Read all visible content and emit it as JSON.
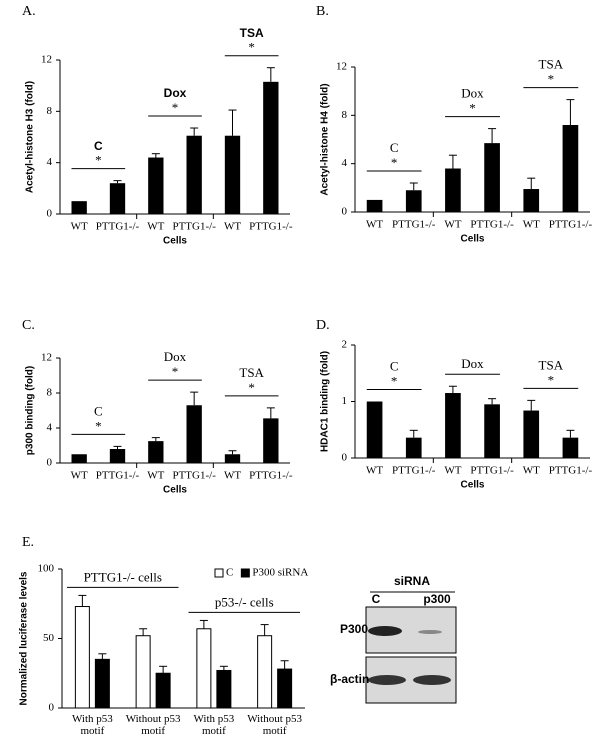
{
  "chart_data": [
    {
      "type": "bar",
      "panel": "A.",
      "ylabel": "Acetyl-histone H3 (fold)",
      "xlabel": "Cells",
      "categories": [
        "WT",
        "PTTG1-/-",
        "WT",
        "PTTG1-/-",
        "WT",
        "PTTG1-/-"
      ],
      "values": [
        1.0,
        2.4,
        4.4,
        6.1,
        6.1,
        10.3
      ],
      "errors": [
        0,
        0.2,
        0.3,
        0.6,
        2.0,
        1.1
      ],
      "groups": [
        {
          "label": "C",
          "star": "*"
        },
        {
          "label": "Dox",
          "star": "*"
        },
        {
          "label": "TSA",
          "star": "*"
        }
      ],
      "color": "#000000",
      "ylim": [
        0,
        12
      ],
      "yticks": [
        0,
        4,
        8,
        12
      ]
    },
    {
      "type": "bar",
      "panel": "B.",
      "ylabel": "Acetyl-histone H4 (fold)",
      "xlabel": "Cells",
      "categories": [
        "WT",
        "PTTG1-/-",
        "WT",
        "PTTG1-/-",
        "WT",
        "PTTG1-/-"
      ],
      "values": [
        1.0,
        1.8,
        3.6,
        5.7,
        1.9,
        7.2
      ],
      "errors": [
        0,
        0.6,
        1.1,
        1.2,
        0.9,
        2.1
      ],
      "groups": [
        {
          "label": "C",
          "star": "*"
        },
        {
          "label": "Dox",
          "star": "*"
        },
        {
          "label": "TSA",
          "star": "*"
        }
      ],
      "color": "#000000",
      "ylim": [
        0,
        12
      ],
      "yticks": [
        0,
        4,
        8,
        12
      ]
    },
    {
      "type": "bar",
      "panel": "C.",
      "ylabel": "p300 binding (fold)",
      "xlabel": "Cells",
      "categories": [
        "WT",
        "PTTG1-/-",
        "WT",
        "PTTG1-/-",
        "WT",
        "PTTG1-/-"
      ],
      "values": [
        1.0,
        1.6,
        2.5,
        6.6,
        1.0,
        5.1
      ],
      "errors": [
        0,
        0.3,
        0.4,
        1.5,
        0.4,
        1.2
      ],
      "groups": [
        {
          "label": "C",
          "star": "*"
        },
        {
          "label": "Dox",
          "star": "*"
        },
        {
          "label": "TSA",
          "star": "*"
        }
      ],
      "color": "#000000",
      "ylim": [
        0,
        12
      ],
      "yticks": [
        0,
        4,
        8,
        12
      ]
    },
    {
      "type": "bar",
      "panel": "D.",
      "ylabel": "HDAC1 binding (fold)",
      "xlabel": "Cells",
      "categories": [
        "WT",
        "PTTG1-/-",
        "WT",
        "PTTG1-/-",
        "WT",
        "PTTG1-/-"
      ],
      "values": [
        1.0,
        0.36,
        1.15,
        0.95,
        0.84,
        0.36
      ],
      "errors": [
        0,
        0.13,
        0.12,
        0.1,
        0.18,
        0.13
      ],
      "groups": [
        {
          "label": "C",
          "star": "*"
        },
        {
          "label": "Dox"
        },
        {
          "label": "TSA",
          "star": "*"
        }
      ],
      "color": "#000000",
      "ylim": [
        0,
        2
      ],
      "yticks": [
        0,
        1,
        2
      ]
    },
    {
      "type": "grouped_bar",
      "panel": "E.",
      "ylabel": "Normalized luciferase levels",
      "categories": [
        "With p53 motif",
        "Without p53 motif",
        "With p53 motif",
        "Without p53 motif"
      ],
      "groups": [
        {
          "label": "PTTG1-/- cells"
        },
        {
          "label": "p53-/- cells"
        }
      ],
      "series": [
        {
          "name": "C",
          "color": "#ffffff",
          "values": [
            73,
            52,
            57,
            52
          ],
          "errors": [
            8,
            5,
            6,
            8
          ]
        },
        {
          "name": "P300 siRNA",
          "color": "#000000",
          "values": [
            35,
            25,
            27,
            28
          ],
          "errors": [
            4,
            5,
            3,
            6
          ]
        }
      ],
      "ylim": [
        0,
        100
      ],
      "yticks": [
        0,
        50,
        100
      ],
      "legend": "top-right"
    }
  ],
  "blot": {
    "title": "siRNA",
    "lanes": [
      "C",
      "p300"
    ],
    "rows": [
      "P300",
      "β-actin"
    ]
  }
}
